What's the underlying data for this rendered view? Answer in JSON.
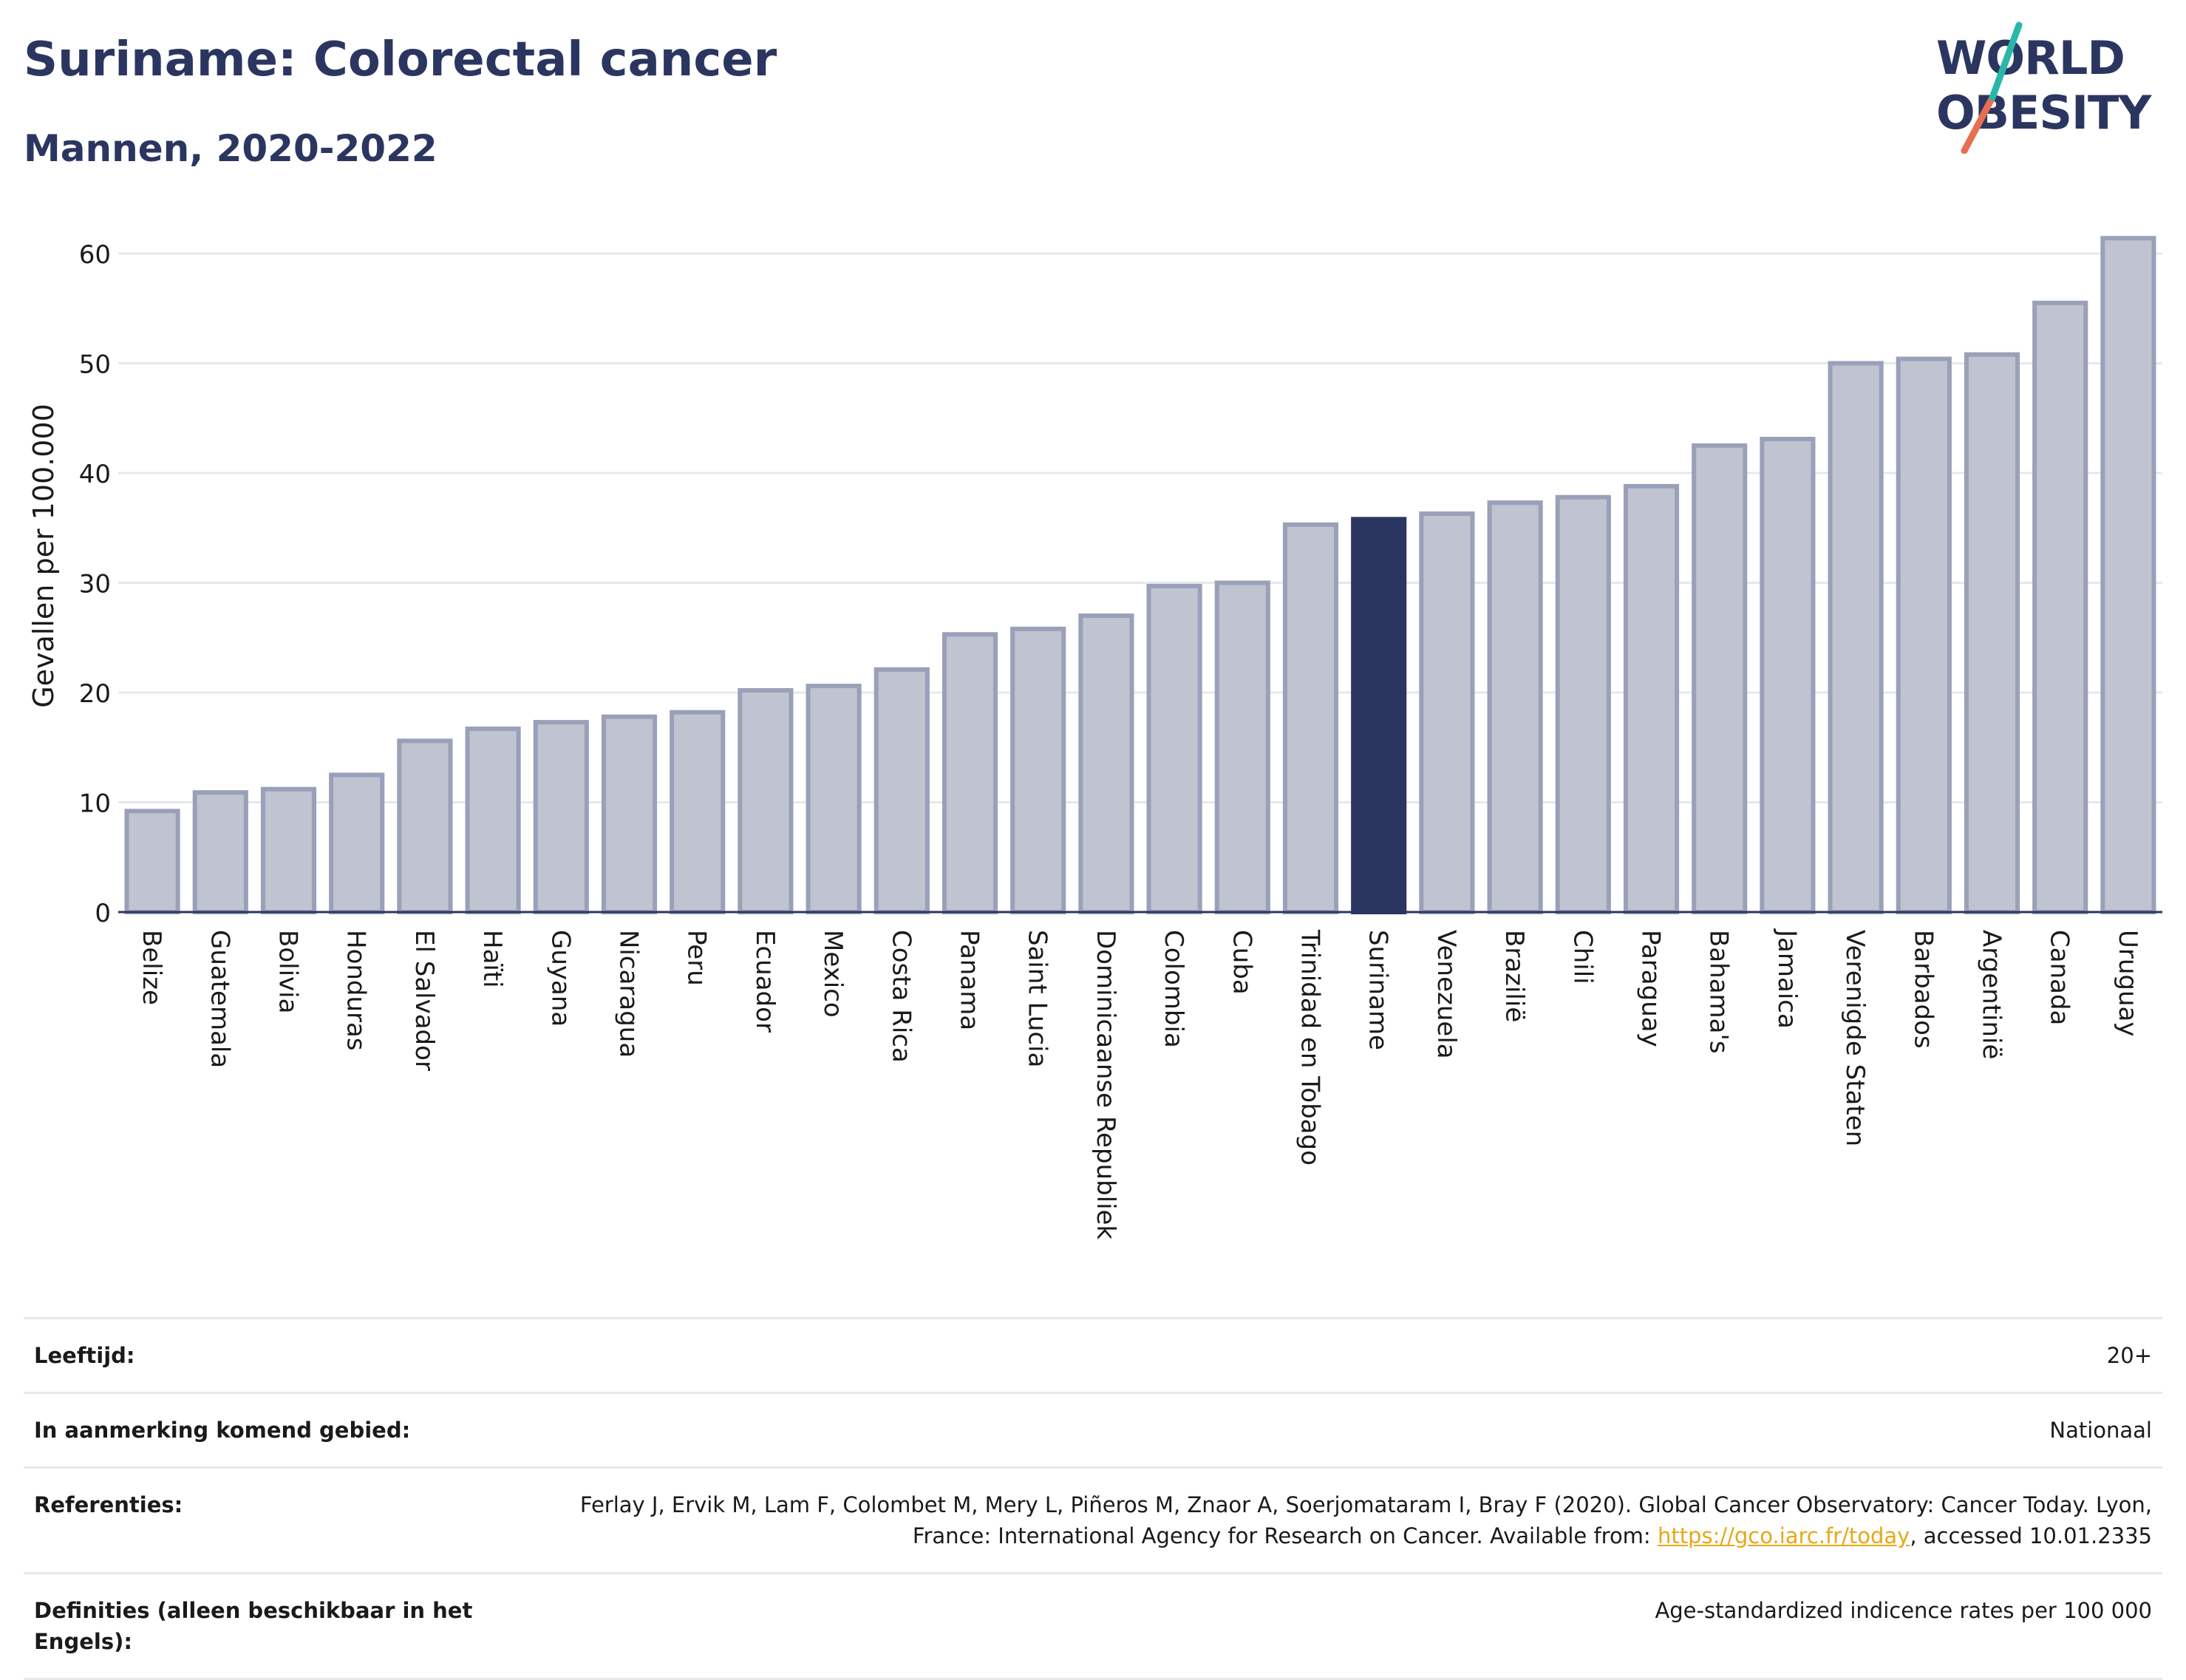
{
  "header": {
    "title": "Suriname: Colorectal cancer",
    "subtitle": "Mannen, 2020-2022"
  },
  "logo": {
    "line1": "WORLD",
    "line2": "OBESITY"
  },
  "colors": {
    "bar_default": "#c0c3d0",
    "bar_stroke": "#9aa0b8",
    "bar_highlight": "#2b3660",
    "title": "#2b3660",
    "gridline": "#e6e8ef",
    "link": "#e6a817"
  },
  "chart_data": {
    "type": "bar",
    "title": "Suriname: Colorectal cancer",
    "subtitle": "Mannen, 2020-2022",
    "ylabel": "Gevallen per 100.000",
    "xlabel": "",
    "ylim": [
      0,
      64
    ],
    "yticks": [
      0,
      10,
      20,
      30,
      40,
      50,
      60
    ],
    "grid": true,
    "highlight": "Suriname",
    "categories": [
      "Belize",
      "Guatemala",
      "Bolivia",
      "Honduras",
      "El Salvador",
      "Haïti",
      "Guyana",
      "Nicaragua",
      "Peru",
      "Ecuador",
      "Mexico",
      "Costa Rica",
      "Panama",
      "Saint Lucia",
      "Dominicaanse Republiek",
      "Colombia",
      "Cuba",
      "Trinidad en Tobago",
      "Suriname",
      "Venezuela",
      "Brazilië",
      "Chili",
      "Paraguay",
      "Bahama's",
      "Jamaica",
      "Verenigde Staten",
      "Barbados",
      "Argentinië",
      "Canada",
      "Uruguay"
    ],
    "values": [
      9.2,
      10.9,
      11.2,
      12.5,
      15.6,
      16.7,
      17.3,
      17.8,
      18.2,
      20.2,
      20.6,
      22.1,
      25.3,
      25.8,
      27.0,
      29.7,
      30.0,
      35.3,
      35.8,
      36.3,
      37.3,
      37.8,
      38.8,
      42.5,
      43.1,
      50.0,
      50.4,
      50.8,
      55.5,
      61.4
    ]
  },
  "meta": [
    {
      "key": "Leeftijd:",
      "value": "20+"
    },
    {
      "key": "In aanmerking komend gebied:",
      "value": "Nationaal"
    },
    {
      "key": "Referenties:",
      "value_before": "Ferlay J, Ervik M, Lam F, Colombet M, Mery L, Piñeros M, Znaor A, Soerjomataram I, Bray F (2020). Global Cancer Observatory: Cancer Today. Lyon, France: International Agency for Research on Cancer. Available from: ",
      "link": "https://gco.iarc.fr/today",
      "value_after": ", accessed 10.01.2335"
    },
    {
      "key": "Definities (alleen beschikbaar in het Engels):",
      "value": "Age-standardized indicence rates per 100 000"
    }
  ]
}
